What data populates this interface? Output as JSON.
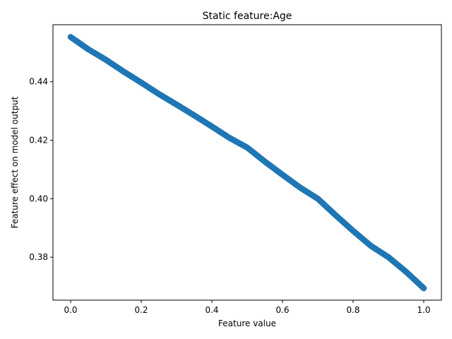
{
  "chart_data": {
    "type": "scatter",
    "title": "Static feature:Age",
    "xlabel": "Feature value",
    "ylabel": "Feature effect on model output",
    "xlim": [
      -0.05,
      1.05
    ],
    "ylim": [
      0.3653,
      0.4595
    ],
    "xticks": [
      "0.0",
      "0.2",
      "0.4",
      "0.6",
      "0.8",
      "1.0"
    ],
    "yticks": [
      "0.38",
      "0.40",
      "0.42",
      "0.44"
    ],
    "grid": false,
    "legend": "none",
    "marker_color": "#1f77b4",
    "series": [
      {
        "curve_points": [
          [
            0.0,
            0.4553
          ],
          [
            0.05,
            0.4511
          ],
          [
            0.1,
            0.4475
          ],
          [
            0.15,
            0.4435
          ],
          [
            0.2,
            0.4397
          ],
          [
            0.25,
            0.4358
          ],
          [
            0.3,
            0.4322
          ],
          [
            0.35,
            0.4285
          ],
          [
            0.4,
            0.4247
          ],
          [
            0.45,
            0.4208
          ],
          [
            0.5,
            0.4175
          ],
          [
            0.55,
            0.4127
          ],
          [
            0.6,
            0.4082
          ],
          [
            0.65,
            0.4038
          ],
          [
            0.7,
            0.4
          ],
          [
            0.75,
            0.3944
          ],
          [
            0.8,
            0.389
          ],
          [
            0.85,
            0.3839
          ],
          [
            0.9,
            0.38
          ],
          [
            0.95,
            0.375
          ],
          [
            1.0,
            0.3694
          ]
        ]
      }
    ]
  }
}
